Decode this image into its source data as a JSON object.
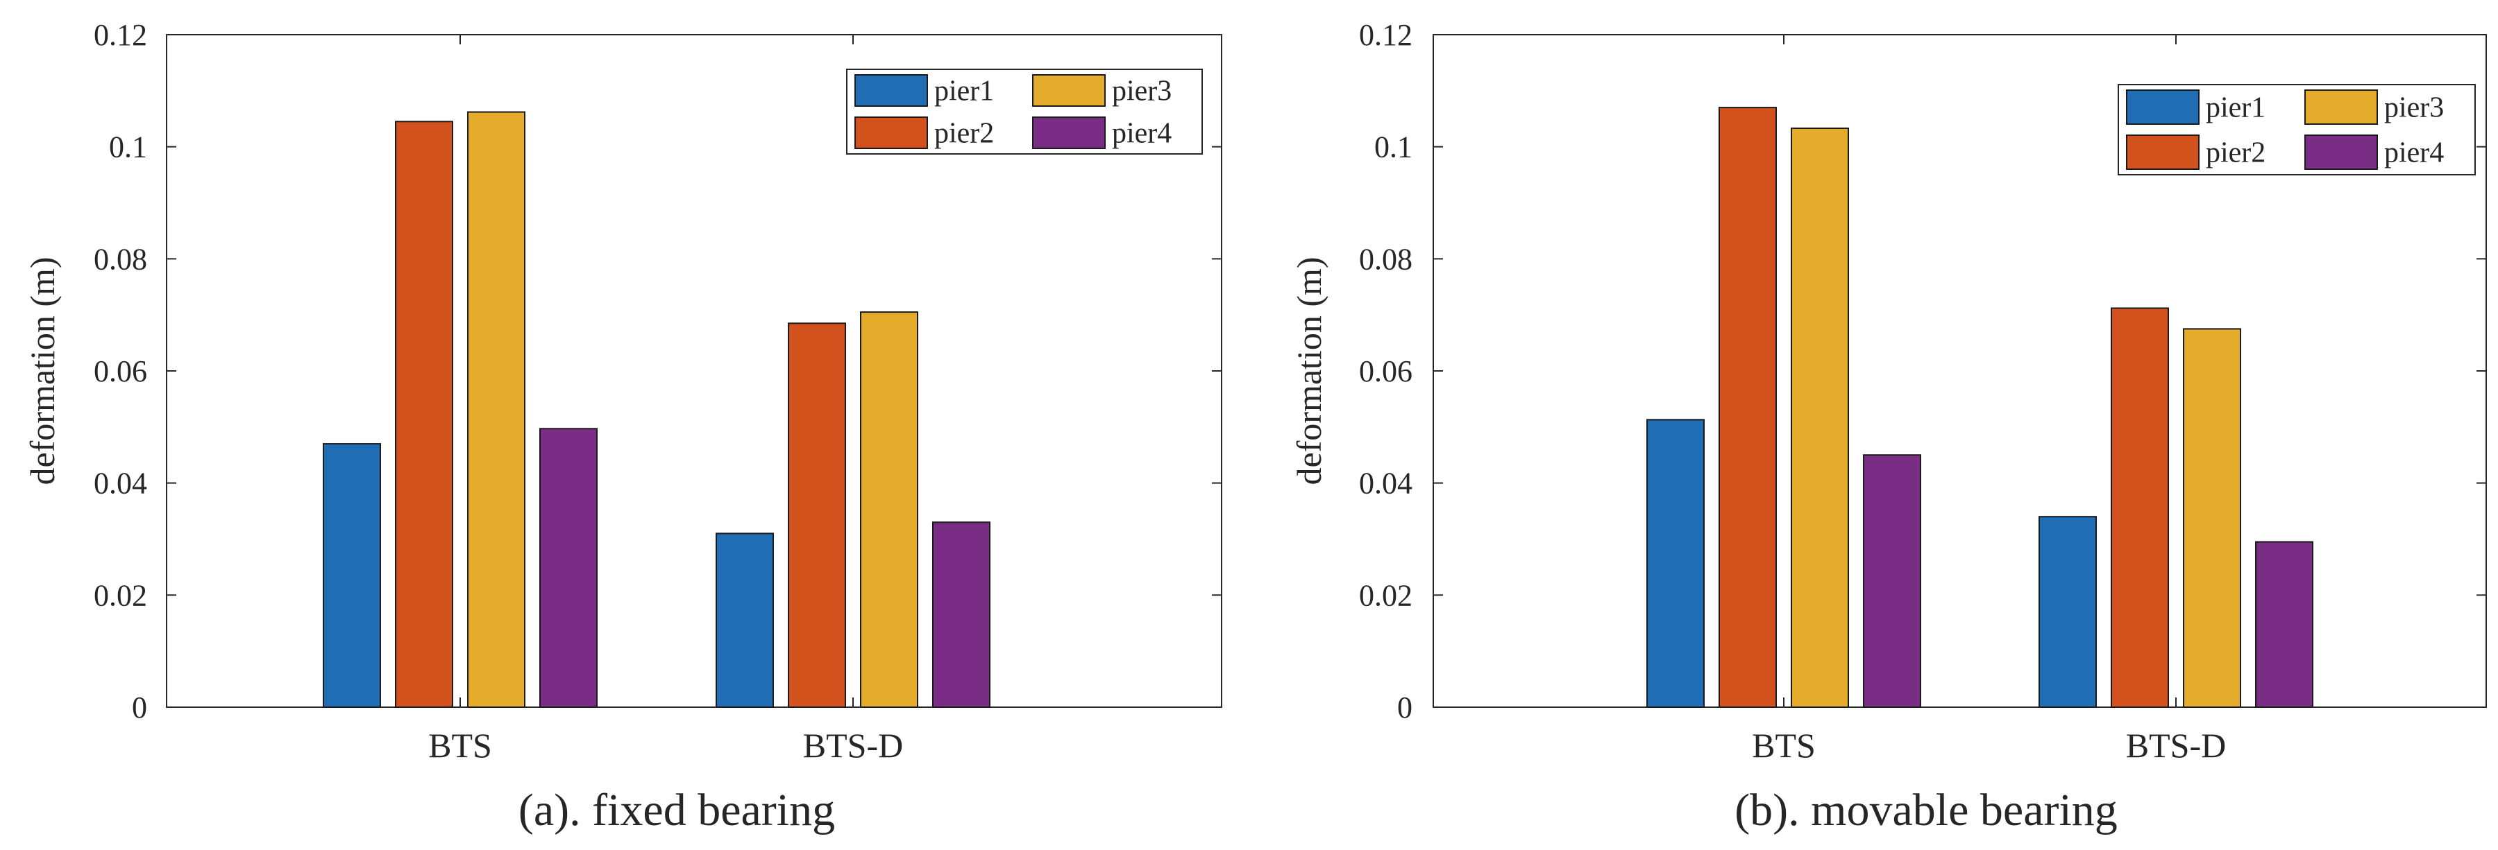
{
  "figure": {
    "panels": [
      {
        "caption": "(a). fixed bearing"
      },
      {
        "caption": "(b). movable bearing"
      }
    ]
  },
  "chart_data": [
    {
      "type": "bar",
      "title": "",
      "caption": "(a). fixed bearing",
      "categories": [
        "BTS",
        "BTS-D"
      ],
      "series": [
        {
          "name": "pier1",
          "color": "#1f6eb5",
          "values": [
            0.047,
            0.031
          ]
        },
        {
          "name": "pier2",
          "color": "#d2511d",
          "values": [
            0.1045,
            0.0685
          ]
        },
        {
          "name": "pier3",
          "color": "#e5ab2a",
          "values": [
            0.1062,
            0.0705
          ]
        },
        {
          "name": "pier4",
          "color": "#7a2d84",
          "values": [
            0.0497,
            0.033
          ]
        }
      ],
      "xlabel": "",
      "ylabel": "deformation (m)",
      "ylim": [
        0,
        0.12
      ],
      "yticks": [
        0,
        0.02,
        0.04,
        0.06,
        0.08,
        0.1,
        0.12
      ],
      "ytick_labels": [
        "0",
        "0.02",
        "0.04",
        "0.06",
        "0.08",
        "0.1",
        "0.12"
      ],
      "grid": false,
      "legend": "top-right"
    },
    {
      "type": "bar",
      "title": "",
      "caption": "(b). movable bearing",
      "categories": [
        "BTS",
        "BTS-D"
      ],
      "series": [
        {
          "name": "pier1",
          "color": "#1f6eb5",
          "values": [
            0.0513,
            0.034
          ]
        },
        {
          "name": "pier2",
          "color": "#d2511d",
          "values": [
            0.107,
            0.0712
          ]
        },
        {
          "name": "pier3",
          "color": "#e5ab2a",
          "values": [
            0.1033,
            0.0675
          ]
        },
        {
          "name": "pier4",
          "color": "#7a2d84",
          "values": [
            0.045,
            0.0295
          ]
        }
      ],
      "xlabel": "",
      "ylabel": "deformation (m)",
      "ylim": [
        0,
        0.12
      ],
      "yticks": [
        0,
        0.02,
        0.04,
        0.06,
        0.08,
        0.1,
        0.12
      ],
      "ytick_labels": [
        "0",
        "0.02",
        "0.04",
        "0.06",
        "0.08",
        "0.1",
        "0.12"
      ],
      "grid": false,
      "legend": "top-right"
    }
  ]
}
